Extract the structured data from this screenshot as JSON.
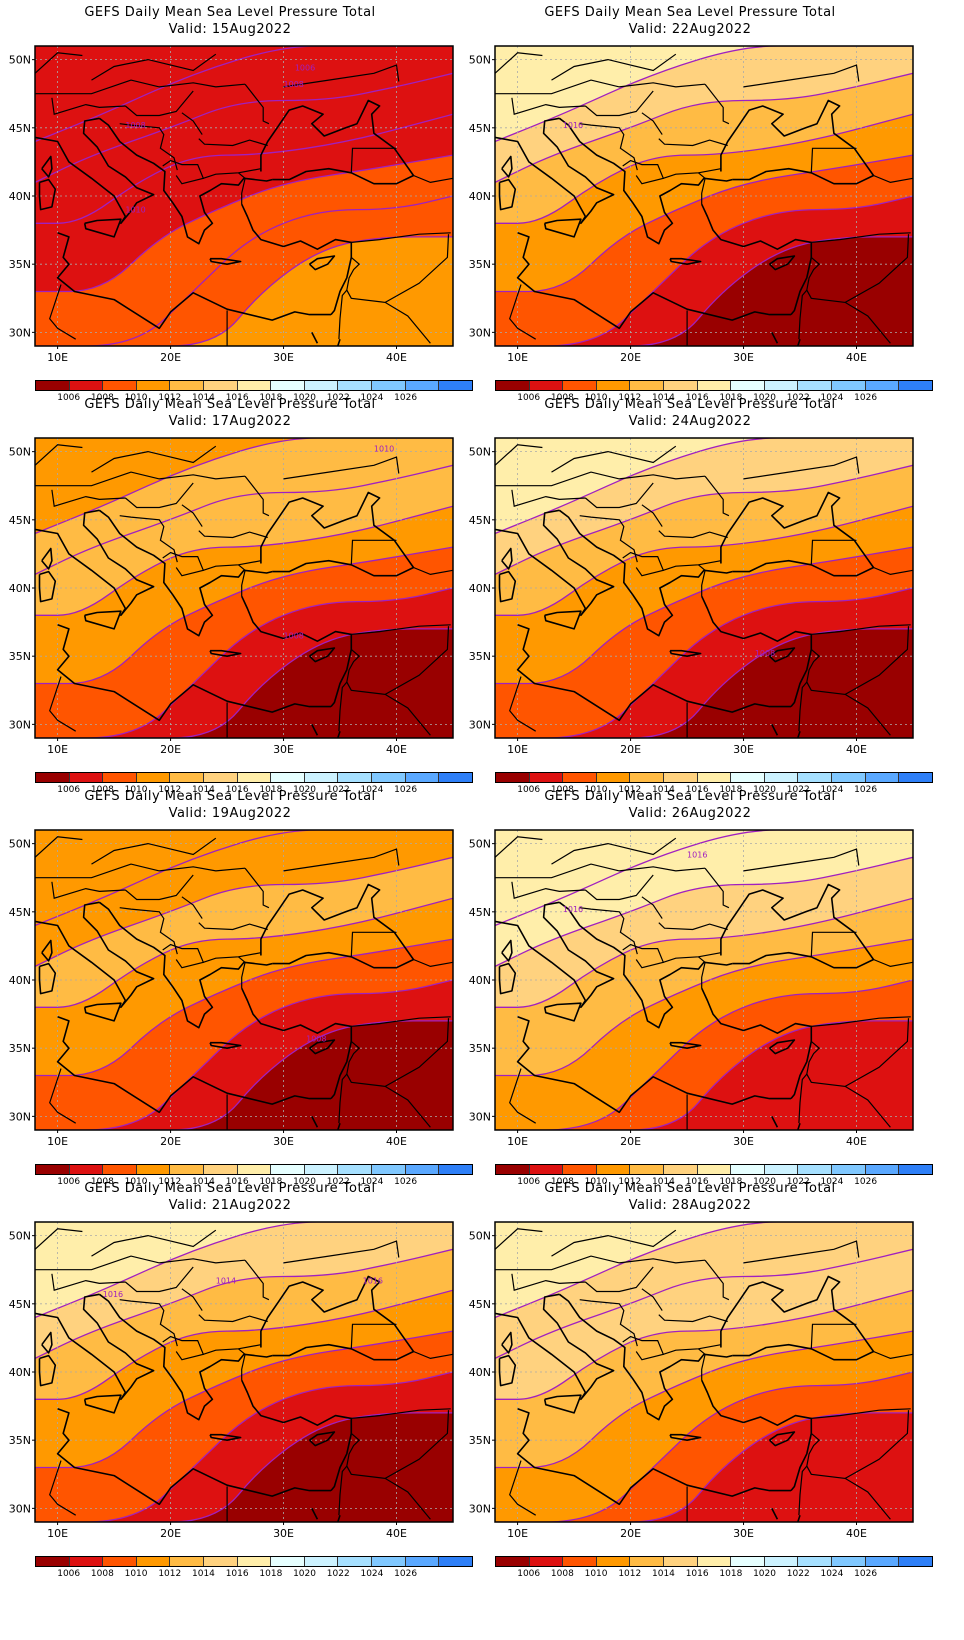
{
  "colors": {
    "levels": [
      "#990000",
      "#dd1111",
      "#ff5500",
      "#ff9900",
      "#ffbb44",
      "#ffd27f",
      "#ffeeaa",
      "#e6ffff",
      "#ccf2ff",
      "#a6e0ff",
      "#80c8ff",
      "#5aa8ff",
      "#2e7ff7"
    ],
    "contour": "#a020c0",
    "coast": "#000000",
    "grid": "#aaaaaa"
  },
  "colorbar_labels": [
    "1006",
    "1008",
    "1010",
    "1012",
    "1014",
    "1016",
    "1018",
    "1020",
    "1022",
    "1024",
    "1026"
  ],
  "lat_labels": [
    "50N",
    "45N",
    "40N",
    "35N",
    "30N"
  ],
  "lon_labels": [
    "10E",
    "20E",
    "30E",
    "40E"
  ],
  "panels": [
    {
      "title": "GEFS Daily Mean Sea Level Pressure Total",
      "valid": "Valid:  15Aug2022",
      "field": [
        1007.5,
        1006.5,
        1006,
        1007,
        1008,
        1009,
        1010.5
      ],
      "contour_labels": [
        "1008",
        "1010",
        "1006",
        "1008"
      ]
    },
    {
      "title": "GEFS Daily Mean Sea Level Pressure Total",
      "valid": "Valid:  22Aug2022",
      "field": [
        1017,
        1015,
        1013,
        1011,
        1009,
        1007,
        1005
      ],
      "contour_labels": [
        "1016"
      ]
    },
    {
      "title": "GEFS Daily Mean Sea Level Pressure Total",
      "valid": "Valid:  17Aug2022",
      "field": [
        1011,
        1012,
        1012,
        1011,
        1009,
        1007,
        1005
      ],
      "contour_labels": [
        "1010",
        "1008"
      ]
    },
    {
      "title": "GEFS Daily Mean Sea Level Pressure Total",
      "valid": "Valid:  24Aug2022",
      "field": [
        1016.5,
        1015,
        1013,
        1011,
        1009,
        1007,
        1005
      ],
      "contour_labels": [
        "1008"
      ]
    },
    {
      "title": "GEFS Daily Mean Sea Level Pressure Total",
      "valid": "Valid:  19Aug2022",
      "field": [
        1010,
        1011,
        1012,
        1011,
        1009,
        1007,
        1005
      ],
      "contour_labels": [
        "1008"
      ]
    },
    {
      "title": "GEFS Daily Mean Sea Level Pressure Total",
      "valid": "Valid:  26Aug2022",
      "field": [
        1017.5,
        1016,
        1014,
        1012,
        1010,
        1008,
        1006
      ],
      "contour_labels": [
        "1016",
        "1016"
      ]
    },
    {
      "title": "GEFS Daily Mean Sea Level Pressure Total",
      "valid": "Valid:  21Aug2022",
      "field": [
        1017,
        1015,
        1013,
        1010,
        1008,
        1006,
        1005
      ],
      "contour_labels": [
        "1014",
        "1016",
        "1016"
      ]
    },
    {
      "title": "GEFS Daily Mean Sea Level Pressure Total",
      "valid": "Valid:  28Aug2022",
      "field": [
        1017,
        1015,
        1014,
        1012,
        1010,
        1008,
        1006
      ],
      "contour_labels": []
    }
  ]
}
